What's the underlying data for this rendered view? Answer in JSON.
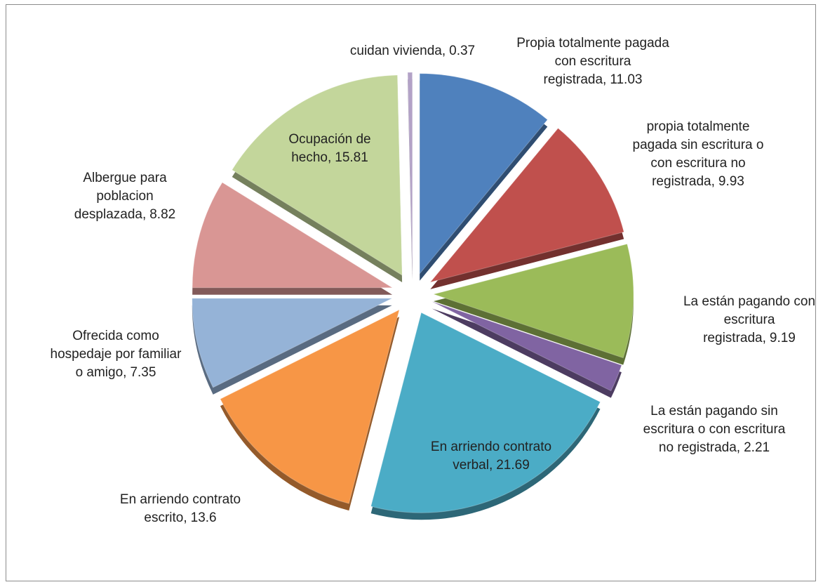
{
  "chart_data": {
    "type": "pie",
    "categories": [
      "Propia totalmente pagada con escritura registrada,",
      "propia totalmente pagada sin escritura o con escritura no registrada,",
      "La están pagando con escritura registrada,",
      "La están pagando sin escritura o con escritura no registrada,",
      "En arriendo contrato verbal,",
      "En arriendo contrato escrito,",
      "Ofrecida como hospedaje por familiar o amigo,",
      "Albergue para poblacion desplazada,",
      "Ocupación de hecho,",
      "cuidan vivienda,"
    ],
    "values": [
      11.03,
      9.93,
      9.19,
      2.21,
      21.69,
      13.6,
      7.35,
      8.82,
      15.81,
      0.37
    ],
    "colors": [
      "#4f81bd",
      "#c0504d",
      "#9bbb59",
      "#8064a2",
      "#4bacc6",
      "#f79646",
      "#95b3d7",
      "#d99694",
      "#c3d69b",
      "#b3a2c7"
    ]
  }
}
